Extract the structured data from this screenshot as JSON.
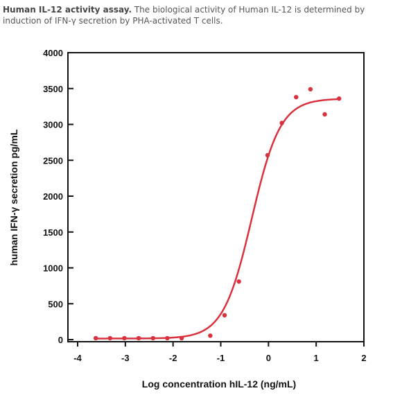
{
  "caption": {
    "bold": "Human IL-12 activity assay.",
    "text": " The biological activity of Human IL-12 is determined by induction of IFN-γ secretion by PHA-activated T cells."
  },
  "chart_data": {
    "type": "scatter",
    "title": "",
    "xlabel": "Log concentration hIL-12 (ng/mL)",
    "ylabel": "human IFN-γ secretion pg/mL",
    "xlim": [
      -4,
      2
    ],
    "ylim": [
      0,
      4000
    ],
    "x_ticks": [
      -4,
      -3,
      -2,
      -1,
      0,
      1,
      2
    ],
    "x_tick_labels": [
      "-4",
      "-3",
      "-2",
      "-1",
      "0",
      "1",
      "2"
    ],
    "y_ticks": [
      0,
      500,
      1000,
      1500,
      2000,
      2500,
      3000,
      3500,
      4000
    ],
    "y_tick_labels": [
      "0",
      "500",
      "1000",
      "1500",
      "2000",
      "2500",
      "3000",
      "3500",
      "4000"
    ],
    "grid": false,
    "legend": "none",
    "color": "#d9313d",
    "series": [
      {
        "points": [
          {
            "x": -3.62,
            "y": 20
          },
          {
            "x": -3.32,
            "y": 20
          },
          {
            "x": -3.02,
            "y": 20
          },
          {
            "x": -2.72,
            "y": 20
          },
          {
            "x": -2.42,
            "y": 20
          },
          {
            "x": -2.12,
            "y": 20
          },
          {
            "x": -1.82,
            "y": 20
          },
          {
            "x": -1.22,
            "y": 55
          },
          {
            "x": -0.92,
            "y": 340
          },
          {
            "x": -0.62,
            "y": 810
          },
          {
            "x": -0.02,
            "y": 2570
          },
          {
            "x": 0.28,
            "y": 3020
          },
          {
            "x": 0.58,
            "y": 3380
          },
          {
            "x": 0.88,
            "y": 3490
          },
          {
            "x": 1.18,
            "y": 3140
          },
          {
            "x": 1.48,
            "y": 3360
          }
        ]
      }
    ],
    "fit": {
      "model": "4PL",
      "bottom": 15,
      "top": 3360,
      "log_ec50": -0.35,
      "hill": 1.45,
      "x_range": [
        -3.62,
        1.48
      ]
    }
  }
}
